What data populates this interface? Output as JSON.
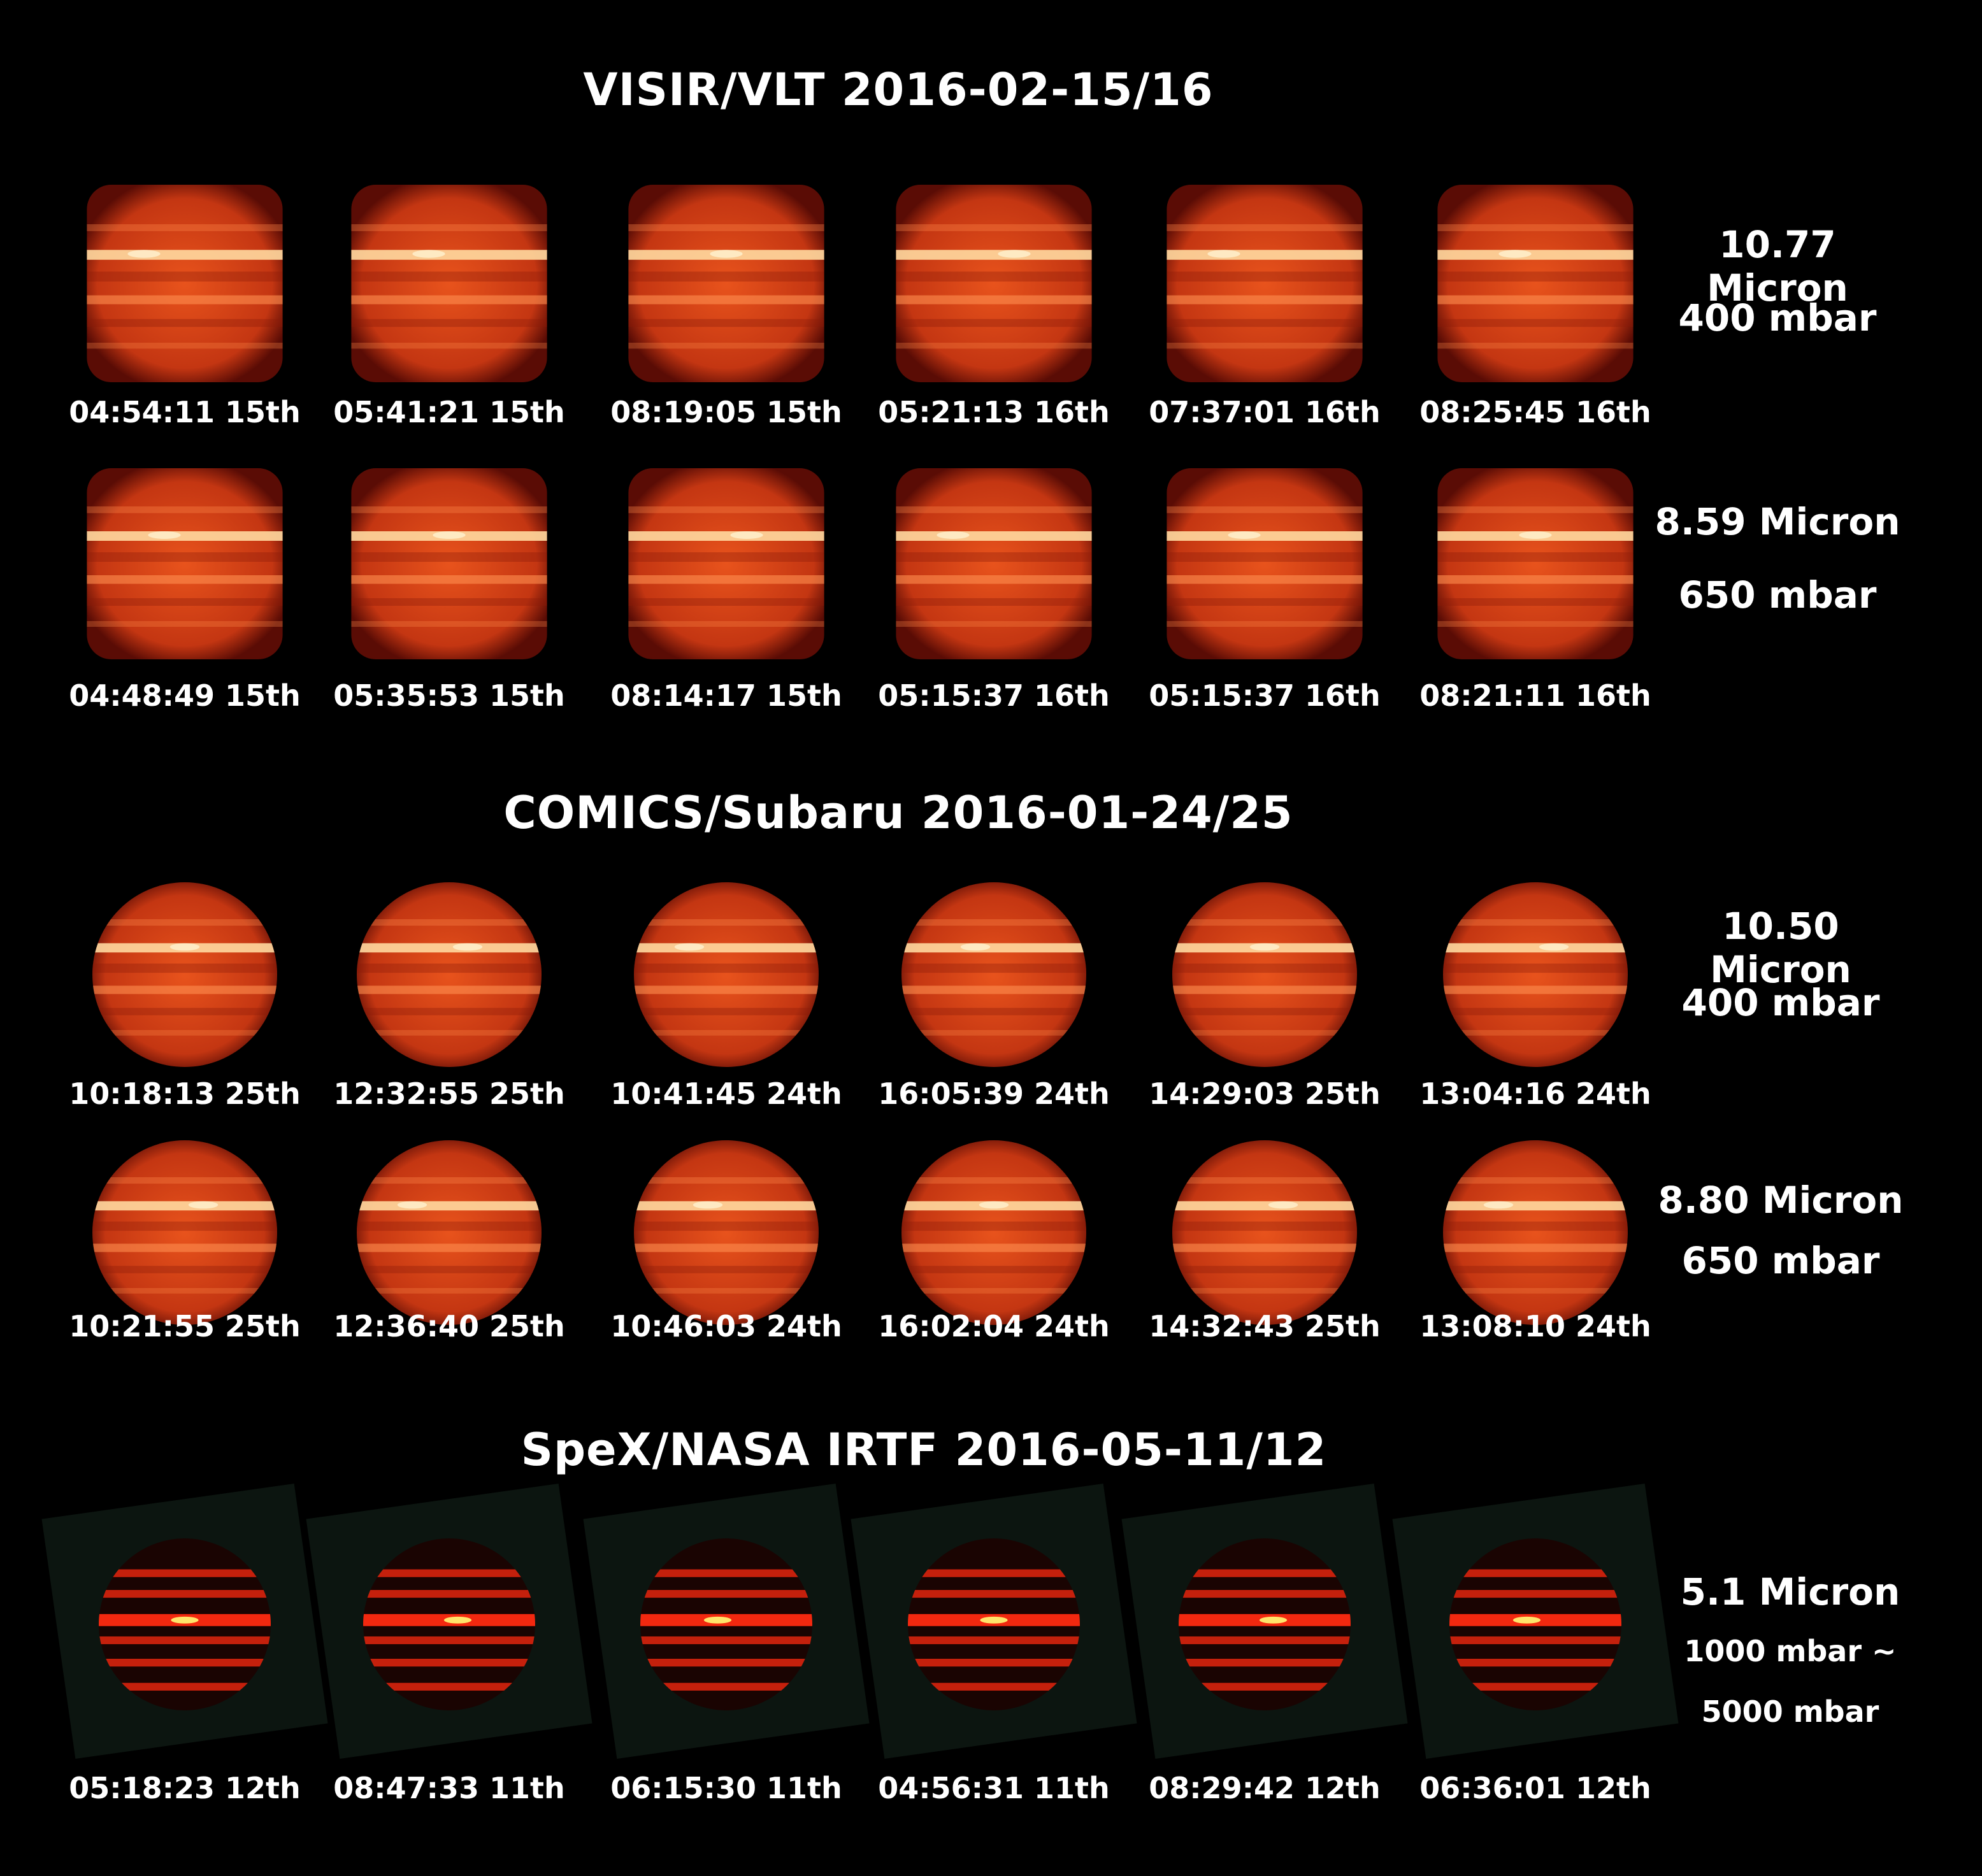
{
  "sections": [
    {
      "title": "VISIR/VLT 2016-02-15/16",
      "rows": [
        {
          "labels": [
            "10.77 Micron",
            "400 mbar"
          ],
          "timestamps": [
            "04:54:11 15th",
            "05:41:21 15th",
            "08:19:05 15th",
            "05:21:13 16th",
            "07:37:01 16th",
            "08:25:45 16th"
          ]
        },
        {
          "labels": [
            "8.59 Micron",
            "650 mbar"
          ],
          "timestamps": [
            "04:48:49 15th",
            "05:35:53 15th",
            "08:14:17 15th",
            "05:15:37 16th",
            "05:15:37 16th",
            "08:21:11 16th"
          ]
        }
      ]
    },
    {
      "title": "COMICS/Subaru 2016-01-24/25",
      "rows": [
        {
          "labels": [
            "10.50 Micron",
            "400 mbar"
          ],
          "timestamps": [
            "10:18:13 25th",
            "12:32:55 25th",
            "10:41:45 24th",
            "16:05:39 24th",
            "14:29:03 25th",
            "13:04:16 24th"
          ]
        },
        {
          "labels": [
            "8.80 Micron",
            "650 mbar"
          ],
          "timestamps": [
            "10:21:55 25th",
            "12:36:40 25th",
            "10:46:03 24th",
            "16:02:04 24th",
            "14:32:43 25th",
            "13:08:10 24th"
          ]
        }
      ]
    },
    {
      "title": "SpeX/NASA IRTF 2016-05-11/12",
      "rows": [
        {
          "labels": [
            "5.1 Micron",
            "1000 mbar ~",
            "5000 mbar"
          ],
          "timestamps": [
            "05:18:23 12th",
            "08:47:33 11th",
            "06:15:30 11th",
            "04:56:31 11th",
            "08:29:42 12th",
            "06:36:01 12th"
          ]
        }
      ]
    }
  ],
  "colors": {
    "background": "#000000",
    "text": "#ffffff",
    "planet_bright": "#ffd9a0",
    "planet_mid": "#e8531c",
    "planet_dark": "#5a0c05",
    "spex_band": "#ff2a10",
    "spex_hot": "#ffe46a"
  }
}
